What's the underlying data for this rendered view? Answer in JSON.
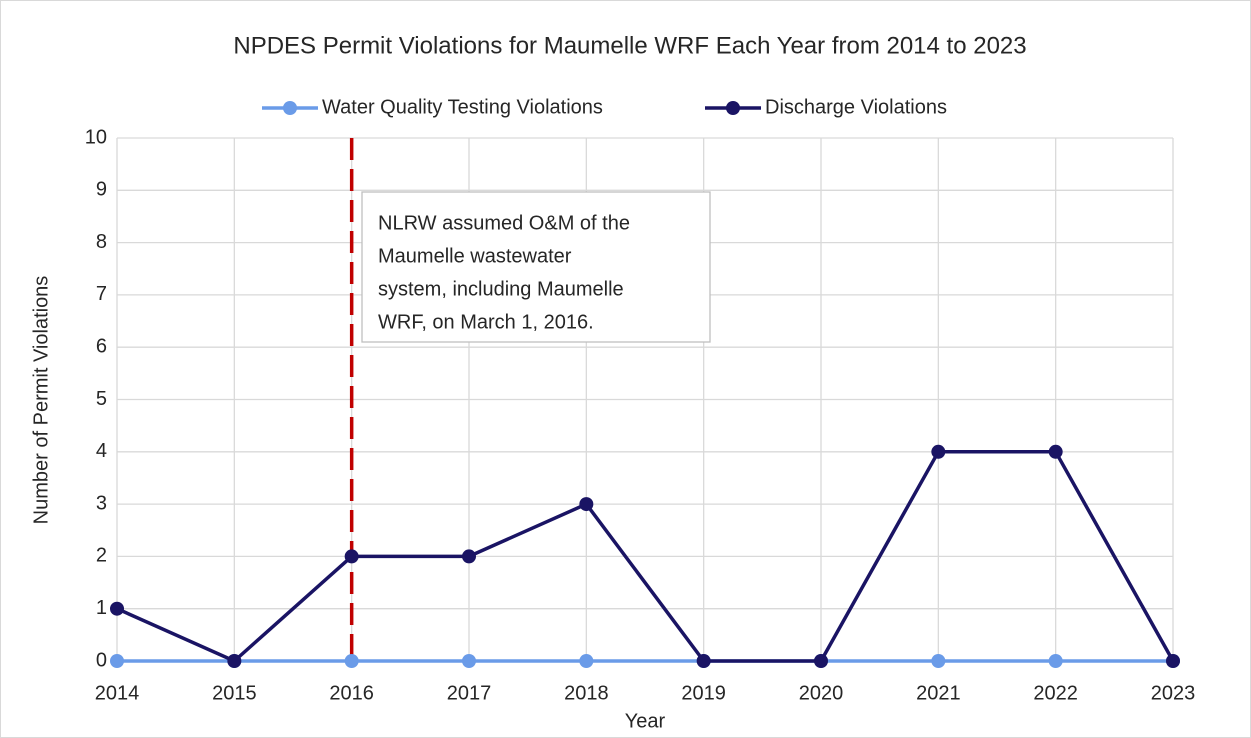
{
  "chart_data": {
    "type": "line",
    "title": "NPDES Permit Violations for Maumelle WRF  Each Year from 2014 to 2023",
    "x_label": "Year",
    "y_label": "Number of Permit Violations",
    "x": [
      2014,
      2015,
      2016,
      2017,
      2018,
      2019,
      2020,
      2021,
      2022,
      2023
    ],
    "series": [
      {
        "name": "Water Quality Testing Violations",
        "color": "#6a9be8",
        "values": [
          0,
          0,
          0,
          0,
          0,
          0,
          0,
          0,
          0,
          0
        ]
      },
      {
        "name": "Discharge Violations",
        "color": "#1a1464",
        "values": [
          1,
          0,
          2,
          2,
          3,
          0,
          0,
          4,
          4,
          0
        ]
      }
    ],
    "xlim": [
      2014,
      2023
    ],
    "xticks": [
      2014,
      2015,
      2016,
      2017,
      2018,
      2019,
      2020,
      2021,
      2022,
      2023
    ],
    "ylim": [
      0,
      10
    ],
    "yticks": [
      0,
      1,
      2,
      3,
      4,
      5,
      6,
      7,
      8,
      9,
      10
    ],
    "grid": true,
    "legend": "top",
    "vline": {
      "x": 2016,
      "color": "#c00000"
    },
    "annotation": {
      "lines": [
        "NLRW assumed O&M of the",
        "Maumelle wastewater",
        "system, including Maumelle",
        "WRF, on March 1, 2016."
      ]
    }
  }
}
